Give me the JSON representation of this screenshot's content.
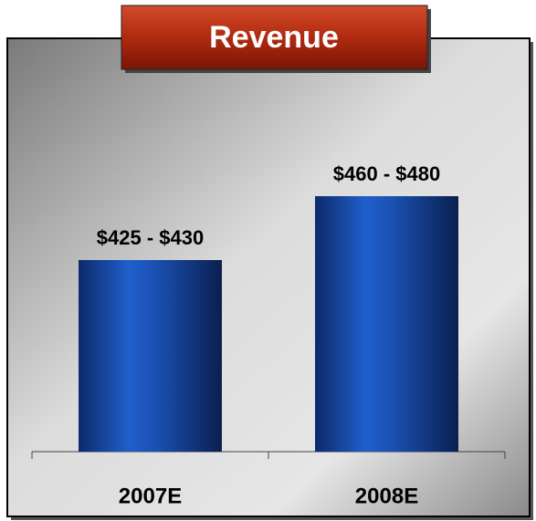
{
  "chart_data": {
    "type": "range-bar",
    "title": "Revenue",
    "categories": [
      "2007E",
      "2008E"
    ],
    "values_low": [
      425,
      460
    ],
    "values_high": [
      430,
      480
    ],
    "value_labels": [
      "$425 - $430",
      "$460 - $480"
    ],
    "color": "#1a4fb0",
    "ylim": [
      280,
      520
    ]
  }
}
